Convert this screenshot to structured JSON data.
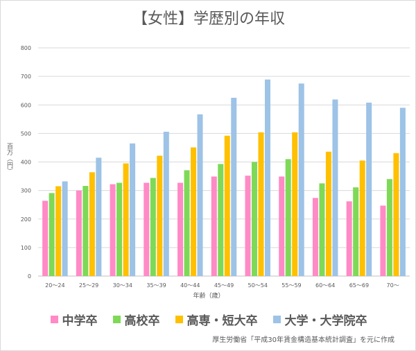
{
  "chart_data": {
    "type": "bar",
    "title": "【女性】学歴別の年収",
    "xlabel": "年齢（歳）",
    "ylabel": "百万（円）",
    "ylim": [
      0,
      800
    ],
    "yticks": [
      "0",
      "100",
      "200",
      "300",
      "400",
      "500",
      "600",
      "700",
      "800"
    ],
    "grid": true,
    "legend_position": "bottom",
    "categories": [
      "20～24",
      "25～29",
      "30～34",
      "35～39",
      "40～44",
      "45～49",
      "50～54",
      "55～59",
      "60～64",
      "65～69",
      "70～"
    ],
    "series": [
      {
        "name": "中学卒",
        "color": "#ff8ac6",
        "values": [
          264,
          300,
          322,
          327,
          327,
          349,
          352,
          349,
          274,
          262,
          247
        ]
      },
      {
        "name": "高校卒",
        "color": "#7ed957",
        "values": [
          291,
          316,
          327,
          344,
          371,
          393,
          400,
          410,
          325,
          311,
          340
        ]
      },
      {
        "name": "高専・短大卒",
        "color": "#ffc000",
        "values": [
          315,
          364,
          395,
          422,
          451,
          492,
          504,
          504,
          436,
          405,
          431
        ]
      },
      {
        "name": "大学・大学院卒",
        "color": "#9dc3e6",
        "values": [
          332,
          415,
          465,
          506,
          567,
          625,
          689,
          675,
          619,
          608,
          590
        ]
      }
    ]
  },
  "source": "厚生労働省「平成30年賃金構造基本統計調査」を元に作成"
}
